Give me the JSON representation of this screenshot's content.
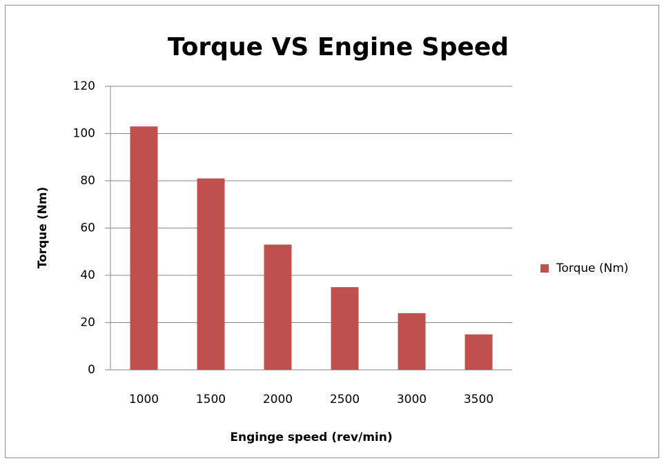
{
  "chart_data": {
    "type": "bar",
    "title": "Torque VS Engine Speed",
    "x_label": "Enginge speed (rev/min)",
    "y_label": "Torque (Nm)",
    "categories": [
      "1000",
      "1500",
      "2000",
      "2500",
      "3000",
      "3500"
    ],
    "series": [
      {
        "name": "Torque (Nm)",
        "color": "#c0504d",
        "values": [
          103,
          81,
          53,
          35,
          24,
          15
        ]
      }
    ],
    "ylim": [
      0,
      120
    ],
    "yticks": [
      0,
      20,
      40,
      60,
      80,
      100,
      120
    ],
    "grid": true,
    "legend": "right"
  }
}
